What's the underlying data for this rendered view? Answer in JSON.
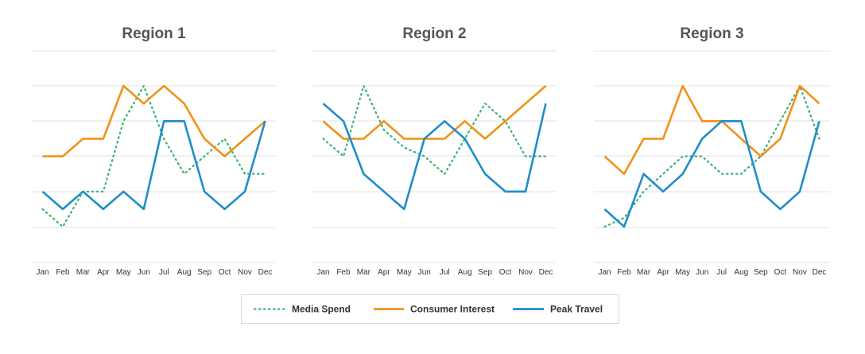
{
  "chart_data": [
    {
      "type": "line",
      "title": "Region 1",
      "categories": [
        "Jan",
        "Feb",
        "Mar",
        "Apr",
        "May",
        "Jun",
        "Jul",
        "Aug",
        "Sep",
        "Oct",
        "Nov",
        "Dec"
      ],
      "ylim": [
        0,
        12
      ],
      "grid": true,
      "series": [
        {
          "name": "Media Spend",
          "values": [
            3,
            2,
            4,
            4,
            8,
            10,
            7,
            5,
            6,
            7,
            5,
            5
          ]
        },
        {
          "name": "Consumer Interest",
          "values": [
            6,
            6,
            7,
            7,
            10,
            9,
            10,
            9,
            7,
            6,
            7,
            8
          ]
        },
        {
          "name": "Peak Travel",
          "values": [
            4,
            3,
            4,
            3,
            4,
            3,
            8,
            8,
            4,
            3,
            4,
            8
          ]
        }
      ]
    },
    {
      "type": "line",
      "title": "Region 2",
      "categories": [
        "Jan",
        "Feb",
        "Mar",
        "Apr",
        "May",
        "Jun",
        "Jul",
        "Aug",
        "Sep",
        "Oct",
        "Nov",
        "Dec"
      ],
      "ylim": [
        0,
        12
      ],
      "grid": true,
      "series": [
        {
          "name": "Media Spend",
          "values": [
            7,
            6,
            10,
            7.5,
            6.5,
            6,
            5,
            7,
            9,
            8,
            6,
            6
          ]
        },
        {
          "name": "Consumer Interest",
          "values": [
            8,
            7,
            7,
            8,
            7,
            7,
            7,
            8,
            7,
            8,
            9,
            10
          ]
        },
        {
          "name": "Peak Travel",
          "values": [
            9,
            8,
            5,
            4,
            3,
            7,
            8,
            7,
            5,
            4,
            4,
            9
          ]
        }
      ]
    },
    {
      "type": "line",
      "title": "Region 3",
      "categories": [
        "Jan",
        "Feb",
        "Mar",
        "Apr",
        "May",
        "Jun",
        "Jul",
        "Aug",
        "Sep",
        "Oct",
        "Nov",
        "Dec"
      ],
      "ylim": [
        0,
        12
      ],
      "grid": true,
      "series": [
        {
          "name": "Media Spend",
          "values": [
            2,
            2.5,
            4,
            5,
            6,
            6,
            5,
            5,
            6,
            8,
            10,
            7
          ]
        },
        {
          "name": "Consumer Interest",
          "values": [
            6,
            5,
            7,
            7,
            10,
            8,
            8,
            7,
            6,
            7,
            10,
            9
          ]
        },
        {
          "name": "Peak Travel",
          "values": [
            3,
            2,
            5,
            4,
            5,
            7,
            8,
            8,
            4,
            3,
            4,
            8
          ]
        }
      ]
    }
  ],
  "legend": {
    "placement": "bottom-center",
    "items": [
      {
        "label": "Media Spend",
        "color": "#3cb371",
        "style": "dotted"
      },
      {
        "label": "Consumer Interest",
        "color": "#f0921a",
        "style": "solid"
      },
      {
        "label": "Peak Travel",
        "color": "#1f8dc8",
        "style": "solid"
      }
    ]
  },
  "colors": {
    "media_spend": "#3cb371",
    "consumer_interest": "#f0921a",
    "peak_travel": "#1f8dc8",
    "grid": "#e3e3e3",
    "title": "#555555"
  }
}
